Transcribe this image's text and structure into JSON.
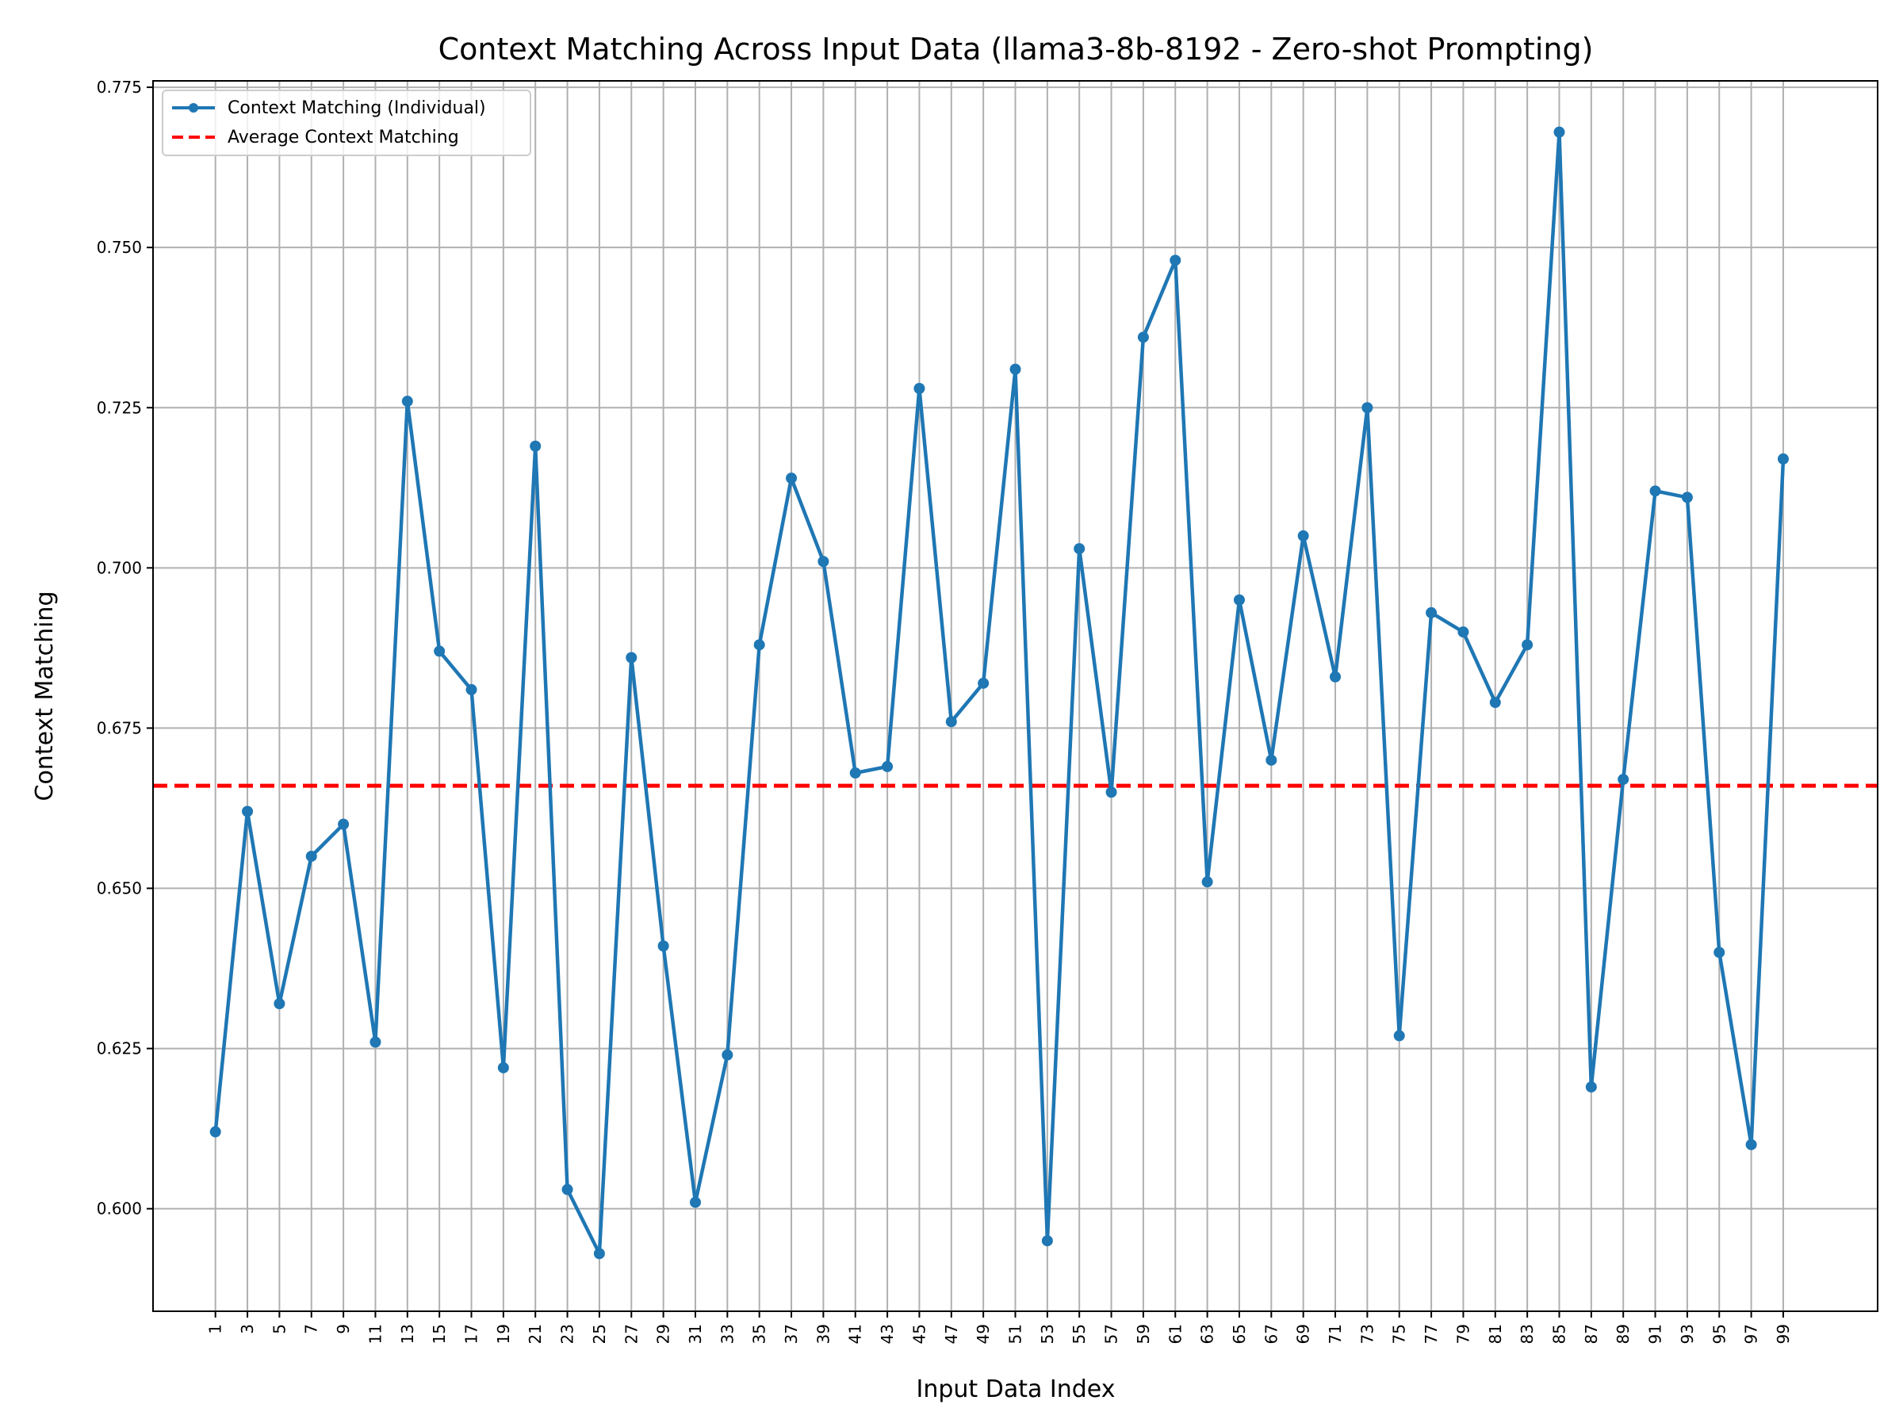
{
  "chart_data": {
    "type": "line",
    "title": "Context Matching Across Input Data (llama3-8b-8192 - Zero-shot Prompting)",
    "xlabel": "Input Data Index",
    "ylabel": "Context Matching",
    "xlim": [
      -2.9,
      104.9
    ],
    "ylim": [
      0.584,
      0.776
    ],
    "xticks": [
      "1",
      "3",
      "5",
      "7",
      "9",
      "11",
      "13",
      "15",
      "17",
      "19",
      "21",
      "23",
      "25",
      "27",
      "29",
      "31",
      "33",
      "35",
      "37",
      "39",
      "41",
      "43",
      "45",
      "47",
      "49",
      "51",
      "53",
      "55",
      "57",
      "59",
      "61",
      "63",
      "65",
      "67",
      "69",
      "71",
      "73",
      "75",
      "77",
      "79",
      "81",
      "83",
      "85",
      "87",
      "89",
      "91",
      "93",
      "95",
      "97",
      "99"
    ],
    "yticks": [
      "0.600",
      "0.625",
      "0.650",
      "0.675",
      "0.700",
      "0.725",
      "0.750",
      "0.775"
    ],
    "grid": true,
    "legend_position": "top-left",
    "legend": [
      "Context Matching (Individual)",
      "Average Context Matching"
    ],
    "series": [
      {
        "name": "Context Matching (Individual)",
        "color": "#1f77b4",
        "x": [
          1,
          3,
          5,
          7,
          9,
          11,
          13,
          15,
          17,
          19,
          21,
          23,
          25,
          27,
          29,
          31,
          33,
          35,
          37,
          39,
          41,
          43,
          45,
          47,
          49,
          51,
          53,
          55,
          57,
          59,
          61,
          63,
          65,
          67,
          69,
          71,
          73,
          75,
          77,
          79,
          81,
          83,
          85,
          87,
          89,
          91,
          93,
          95,
          97,
          99
        ],
        "values": [
          0.612,
          0.662,
          0.632,
          0.655,
          0.66,
          0.626,
          0.726,
          0.687,
          0.681,
          0.622,
          0.719,
          0.603,
          0.593,
          0.686,
          0.641,
          0.601,
          0.624,
          0.688,
          0.714,
          0.701,
          0.668,
          0.669,
          0.728,
          0.676,
          0.682,
          0.731,
          0.595,
          0.703,
          0.665,
          0.736,
          0.748,
          0.651,
          0.695,
          0.67,
          0.705,
          0.683,
          0.725,
          0.627,
          0.693,
          0.69,
          0.679,
          0.688,
          0.768,
          0.619,
          0.667,
          0.712,
          0.711,
          0.64,
          0.61,
          0.717
        ]
      }
    ],
    "average": {
      "name": "Average Context Matching",
      "color": "#ff0000",
      "value": 0.666
    }
  }
}
